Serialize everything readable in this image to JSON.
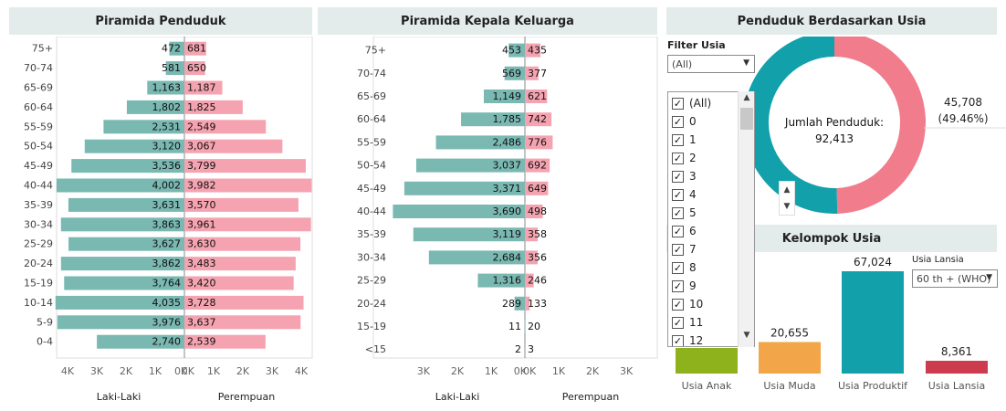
{
  "panels": {
    "pyramid_pop_title": "Piramida Penduduk",
    "pyramid_kk_title": "Piramida Kepala Keluarga",
    "donut_title": "Penduduk Berdasarkan Usia",
    "groups_title": "Kelompok Usia"
  },
  "filter": {
    "label": "Filter Usia",
    "selected": "(All)",
    "items": [
      "(All)",
      "0",
      "1",
      "2",
      "3",
      "4",
      "5",
      "6",
      "7",
      "8",
      "9",
      "10",
      "11",
      "12"
    ]
  },
  "lansia_filter": {
    "label": "Usia Lansia",
    "selected": "60 th + (WHO)"
  },
  "colors": {
    "male": "#7ab8b2",
    "female": "#f5a3b0",
    "teal": "#12a0ab",
    "pink": "#f07c8c"
  },
  "chart_data": [
    {
      "type": "bar",
      "subtype": "population-pyramid",
      "title": "Piramida Penduduk",
      "categories": [
        "75+",
        "70-74",
        "65-69",
        "60-64",
        "55-59",
        "50-54",
        "45-49",
        "40-44",
        "35-39",
        "30-34",
        "25-29",
        "20-24",
        "15-19",
        "10-14",
        "5-9",
        "0-4"
      ],
      "series": [
        {
          "name": "Laki-Laki",
          "values": [
            472,
            581,
            1163,
            1802,
            2531,
            3120,
            3536,
            4002,
            3631,
            3863,
            3627,
            3862,
            3764,
            4035,
            3976,
            2740
          ],
          "labels": [
            "472",
            "581",
            "1,163",
            "1,802",
            "2,531",
            "3,120",
            "3,536",
            "4,002",
            "3,631",
            "3,863",
            "3,627",
            "3,862",
            "3,764",
            "4,035",
            "3,976",
            "2,740"
          ]
        },
        {
          "name": "Perempuan",
          "values": [
            681,
            650,
            1187,
            1825,
            2549,
            3067,
            3799,
            3982,
            3570,
            3961,
            3630,
            3483,
            3420,
            3728,
            3637,
            2539
          ],
          "labels": [
            "681",
            "650",
            "1,187",
            "1,825",
            "2,549",
            "3,067",
            "3,799",
            "3,982",
            "3,570",
            "3,961",
            "3,630",
            "3,483",
            "3,420",
            "3,728",
            "3,637",
            "2,539"
          ]
        }
      ],
      "xlim": [
        -4000,
        4000
      ],
      "xticks": [
        "4K",
        "3K",
        "2K",
        "1K",
        "0K",
        "0K",
        "1K",
        "2K",
        "3K",
        "4K"
      ],
      "xlabel_left": "Laki-Laki",
      "xlabel_right": "Perempuan"
    },
    {
      "type": "bar",
      "subtype": "population-pyramid",
      "title": "Piramida Kepala Keluarga",
      "categories": [
        "75+",
        "70-74",
        "65-69",
        "60-64",
        "55-59",
        "50-54",
        "45-49",
        "40-44",
        "35-39",
        "30-34",
        "25-29",
        "20-24",
        "15-19",
        "<15"
      ],
      "series": [
        {
          "name": "Laki-Laki",
          "values": [
            453,
            569,
            1149,
            1785,
            2486,
            3037,
            3371,
            3690,
            3119,
            2684,
            1316,
            289,
            11,
            2
          ],
          "labels": [
            "453",
            "569",
            "1,149",
            "1,785",
            "2,486",
            "3,037",
            "3,371",
            "3,690",
            "3,119",
            "2,684",
            "1,316",
            "289",
            "11",
            "2"
          ]
        },
        {
          "name": "Perempuan",
          "values": [
            435,
            377,
            621,
            742,
            776,
            692,
            649,
            498,
            358,
            356,
            246,
            133,
            20,
            3
          ],
          "labels": [
            "435",
            "377",
            "621",
            "742",
            "776",
            "692",
            "649",
            "498",
            "358",
            "356",
            "246",
            "133",
            "20",
            "3"
          ]
        }
      ],
      "xlim": [
        -3700,
        3700
      ],
      "xticks": [
        "3K",
        "2K",
        "1K",
        "0K",
        "0K",
        "1K",
        "2K",
        "3K"
      ],
      "xlabel_left": "Laki-Laki",
      "xlabel_right": "Perempuan"
    },
    {
      "type": "pie",
      "subtype": "donut",
      "title": "Penduduk Berdasarkan Usia",
      "center_label": "Jumlah Penduduk:",
      "center_value": "92,413",
      "slices": [
        {
          "value": 45708,
          "label": "45,708",
          "percent": "(49.46%)",
          "color": "#f07c8c"
        },
        {
          "value": 46705,
          "color": "#12a0ab"
        }
      ]
    },
    {
      "type": "bar",
      "title": "Kelompok Usia",
      "categories": [
        "Usia Anak",
        "Usia Muda",
        "Usia Produktif",
        "Usia Lansia"
      ],
      "values": [
        null,
        20655,
        67024,
        8361
      ],
      "labels": [
        "",
        "20,655",
        "67,024",
        "8,361"
      ],
      "colors": [
        "#8db21c",
        "#f2a649",
        "#12a0ab",
        "#cc3b4e"
      ]
    }
  ]
}
